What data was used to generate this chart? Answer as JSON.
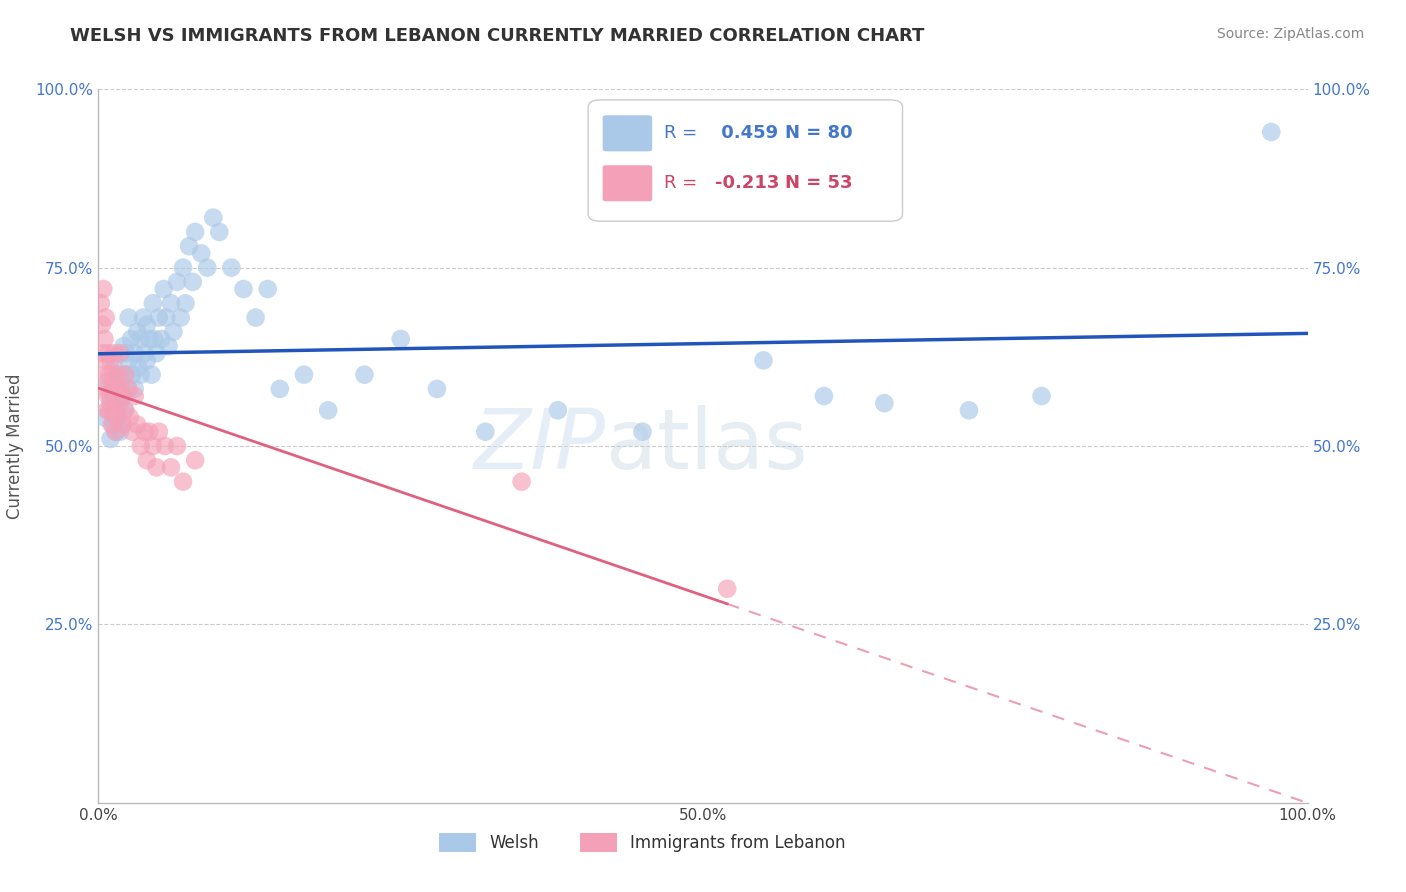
{
  "title": "WELSH VS IMMIGRANTS FROM LEBANON CURRENTLY MARRIED CORRELATION CHART",
  "source": "Source: ZipAtlas.com",
  "ylabel": "Currently Married",
  "xlim": [
    0.0,
    1.0
  ],
  "ylim": [
    0.0,
    1.0
  ],
  "xticks": [
    0.0,
    0.25,
    0.5,
    0.75,
    1.0
  ],
  "yticks": [
    0.0,
    0.25,
    0.5,
    0.75,
    1.0
  ],
  "xticklabels": [
    "0.0%",
    "",
    "50.0%",
    "",
    "100.0%"
  ],
  "yticklabels": [
    "",
    "25.0%",
    "50.0%",
    "75.0%",
    "100.0%"
  ],
  "welsh_color": "#aac8e8",
  "lebanon_color": "#f4a0b8",
  "welsh_line_color": "#2255bb",
  "lebanon_line_color": "#e06080",
  "welsh_R": 0.459,
  "welsh_N": 80,
  "lebanon_R": -0.213,
  "lebanon_N": 53,
  "legend_labels": [
    "Welsh",
    "Immigrants from Lebanon"
  ],
  "background_color": "#ffffff",
  "welsh_x": [
    0.005,
    0.008,
    0.01,
    0.01,
    0.012,
    0.012,
    0.013,
    0.013,
    0.014,
    0.015,
    0.015,
    0.016,
    0.016,
    0.017,
    0.018,
    0.018,
    0.019,
    0.02,
    0.02,
    0.021,
    0.022,
    0.022,
    0.023,
    0.024,
    0.025,
    0.025,
    0.027,
    0.028,
    0.03,
    0.03,
    0.032,
    0.033,
    0.035,
    0.035,
    0.037,
    0.038,
    0.04,
    0.04,
    0.042,
    0.044,
    0.045,
    0.046,
    0.048,
    0.05,
    0.052,
    0.054,
    0.056,
    0.058,
    0.06,
    0.062,
    0.065,
    0.068,
    0.07,
    0.072,
    0.075,
    0.078,
    0.08,
    0.085,
    0.09,
    0.095,
    0.1,
    0.11,
    0.12,
    0.13,
    0.14,
    0.15,
    0.17,
    0.19,
    0.22,
    0.25,
    0.28,
    0.32,
    0.38,
    0.45,
    0.55,
    0.6,
    0.65,
    0.72,
    0.78,
    0.97
  ],
  "welsh_y": [
    0.54,
    0.59,
    0.56,
    0.51,
    0.58,
    0.53,
    0.62,
    0.56,
    0.55,
    0.6,
    0.52,
    0.58,
    0.54,
    0.57,
    0.56,
    0.52,
    0.6,
    0.57,
    0.53,
    0.64,
    0.6,
    0.55,
    0.63,
    0.58,
    0.68,
    0.62,
    0.65,
    0.6,
    0.63,
    0.58,
    0.66,
    0.61,
    0.65,
    0.6,
    0.68,
    0.63,
    0.67,
    0.62,
    0.65,
    0.6,
    0.7,
    0.65,
    0.63,
    0.68,
    0.65,
    0.72,
    0.68,
    0.64,
    0.7,
    0.66,
    0.73,
    0.68,
    0.75,
    0.7,
    0.78,
    0.73,
    0.8,
    0.77,
    0.75,
    0.82,
    0.8,
    0.75,
    0.72,
    0.68,
    0.72,
    0.58,
    0.6,
    0.55,
    0.6,
    0.65,
    0.58,
    0.52,
    0.55,
    0.52,
    0.62,
    0.57,
    0.56,
    0.55,
    0.57,
    0.94
  ],
  "lebanon_x": [
    0.002,
    0.003,
    0.004,
    0.004,
    0.005,
    0.005,
    0.006,
    0.006,
    0.007,
    0.007,
    0.008,
    0.008,
    0.009,
    0.009,
    0.01,
    0.01,
    0.011,
    0.011,
    0.012,
    0.012,
    0.013,
    0.013,
    0.014,
    0.014,
    0.015,
    0.015,
    0.016,
    0.017,
    0.018,
    0.018,
    0.02,
    0.02,
    0.022,
    0.022,
    0.025,
    0.026,
    0.028,
    0.03,
    0.032,
    0.035,
    0.038,
    0.04,
    0.042,
    0.045,
    0.048,
    0.05,
    0.055,
    0.06,
    0.065,
    0.07,
    0.08,
    0.35,
    0.52
  ],
  "lebanon_y": [
    0.7,
    0.67,
    0.72,
    0.63,
    0.65,
    0.6,
    0.68,
    0.62,
    0.58,
    0.55,
    0.63,
    0.57,
    0.6,
    0.55,
    0.62,
    0.57,
    0.58,
    0.53,
    0.6,
    0.55,
    0.63,
    0.58,
    0.55,
    0.52,
    0.58,
    0.54,
    0.6,
    0.56,
    0.63,
    0.58,
    0.57,
    0.53,
    0.6,
    0.55,
    0.58,
    0.54,
    0.52,
    0.57,
    0.53,
    0.5,
    0.52,
    0.48,
    0.52,
    0.5,
    0.47,
    0.52,
    0.5,
    0.47,
    0.5,
    0.45,
    0.48,
    0.45,
    0.3
  ]
}
